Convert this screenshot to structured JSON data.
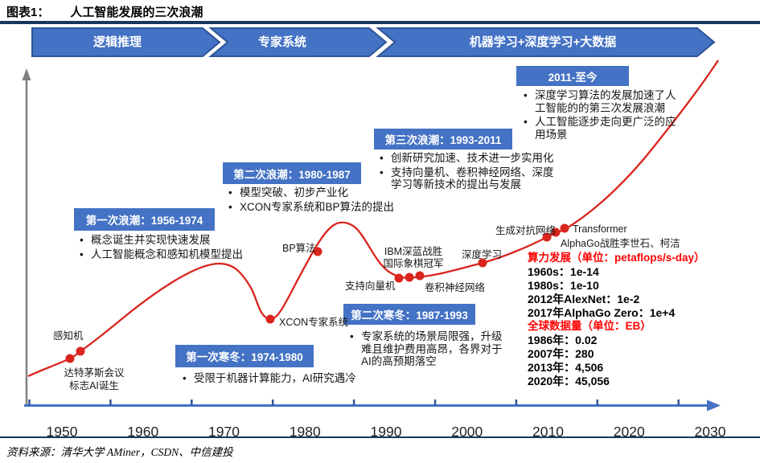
{
  "figure": {
    "label": "图表1：",
    "title": "人工智能发展的三次浪潮"
  },
  "banners": [
    "逻辑推理",
    "专家系统",
    "机器学习+深度学习+大数据"
  ],
  "waves": [
    {
      "title": "第一次浪潮：1956-1974",
      "bullets": [
        "概念诞生并实现快速发展",
        "人工智能概念和感知机模型提出"
      ]
    },
    {
      "title": "第二次浪潮：1980-1987",
      "bullets": [
        "模型突破、初步产业化",
        "XCON专家系统和BP算法的提出"
      ]
    },
    {
      "title": "第三次浪潮：1993-2011",
      "bullets": [
        "创新研究加速、技术进一步实用化",
        "支持向量机、卷积神经网络、深度学习等新技术的提出与发展"
      ]
    },
    {
      "title": "2011-至今",
      "bullets": [
        "深度学习算法的发展加速了人工智能的的第三次发展浪潮",
        "人工智能逐步走向更广泛的应用场景"
      ]
    },
    {
      "title": "第一次寒冬：1974-1980",
      "bullets": [
        "受限于机器计算能力，AI研究遇冷"
      ]
    },
    {
      "title": "第二次寒冬：1987-1993",
      "bullets": [
        "专家系统的场景局限强，升级难且维护费用高昂，各界对于AI的高预期落空"
      ]
    }
  ],
  "milestones": [
    "感知机",
    "达特茅斯会议\n标志AI诞生",
    "XCON专家系统",
    "BP算法",
    "支持向量机",
    "IBM深蓝战胜\n国际象棋冠军",
    "卷积神经网络",
    "深度学习",
    "生成对抗网络",
    "Transformer",
    "AlphaGo战胜李世石、柯洁"
  ],
  "stats": [
    {
      "title": "算力发展（单位：petaflops/s-day）",
      "lines": [
        "1960s：1e-14",
        "1980s：1e-10",
        "2012年AlexNet：1e-2",
        "2017年AlphaGo Zero：1e+4"
      ]
    },
    {
      "title": "全球数据量（单位：EB）",
      "lines": [
        "1986年：0.02",
        "2007年：280",
        "2013年：4,506",
        "2020年：45,056"
      ]
    }
  ],
  "axis": {
    "years": [
      "1950",
      "1960",
      "1970",
      "1980",
      "1990",
      "2000",
      "2010",
      "2020",
      "2030"
    ]
  },
  "source": "资料来源：清华大学 AMiner，CSDN、中信建投",
  "colors": {
    "accent_blue": "#4472C4",
    "banner_border": "#2E5596",
    "navy_rule": "#17375E",
    "curve_red": "#D9251D",
    "stat_red": "#FF0000",
    "axis_gray": "#808080"
  }
}
